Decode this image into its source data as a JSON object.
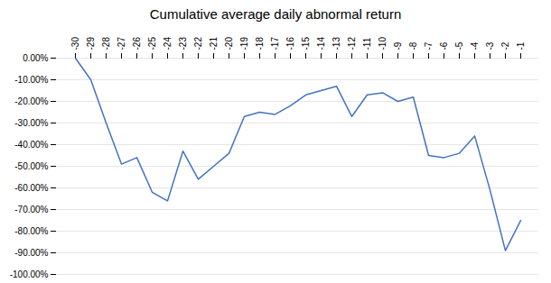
{
  "chart_data": {
    "type": "line",
    "title": "Cumulative average daily abnormal return",
    "categories": [
      "-30",
      "-29",
      "-28",
      "-27",
      "-26",
      "-25",
      "-24",
      "-23",
      "-22",
      "-21",
      "-20",
      "-19",
      "-18",
      "-17",
      "-16",
      "-15",
      "-14",
      "-13",
      "-12",
      "-11",
      "-10",
      "-9",
      "-8",
      "-7",
      "-6",
      "-5",
      "-4",
      "-3",
      "-2",
      "-1"
    ],
    "values": [
      0.0,
      -0.1,
      -0.3,
      -0.49,
      -0.46,
      -0.62,
      -0.66,
      -0.43,
      -0.56,
      -0.5,
      -0.44,
      -0.27,
      -0.25,
      -0.26,
      -0.22,
      -0.17,
      -0.15,
      -0.13,
      -0.27,
      -0.17,
      -0.16,
      -0.2,
      -0.18,
      -0.45,
      -0.46,
      -0.44,
      -0.36,
      -0.61,
      -0.89,
      -0.75
    ],
    "color": "#4472C4",
    "ylim": [
      -1.0,
      0.0
    ],
    "yticks": [
      {
        "value": 0.0,
        "label": "0.00%"
      },
      {
        "value": -0.1,
        "label": "-10.00%"
      },
      {
        "value": -0.2,
        "label": "-20.00%"
      },
      {
        "value": -0.3,
        "label": "-30.00%"
      },
      {
        "value": -0.4,
        "label": "-40.00%"
      },
      {
        "value": -0.5,
        "label": "-50.00%"
      },
      {
        "value": -0.6,
        "label": "-60.00%"
      },
      {
        "value": -0.7,
        "label": "-70.00%"
      },
      {
        "value": -0.8,
        "label": "-80.00%"
      },
      {
        "value": -0.9,
        "label": "-90.00%"
      },
      {
        "value": -1.0,
        "label": "-100.00%"
      }
    ],
    "grid": true
  }
}
